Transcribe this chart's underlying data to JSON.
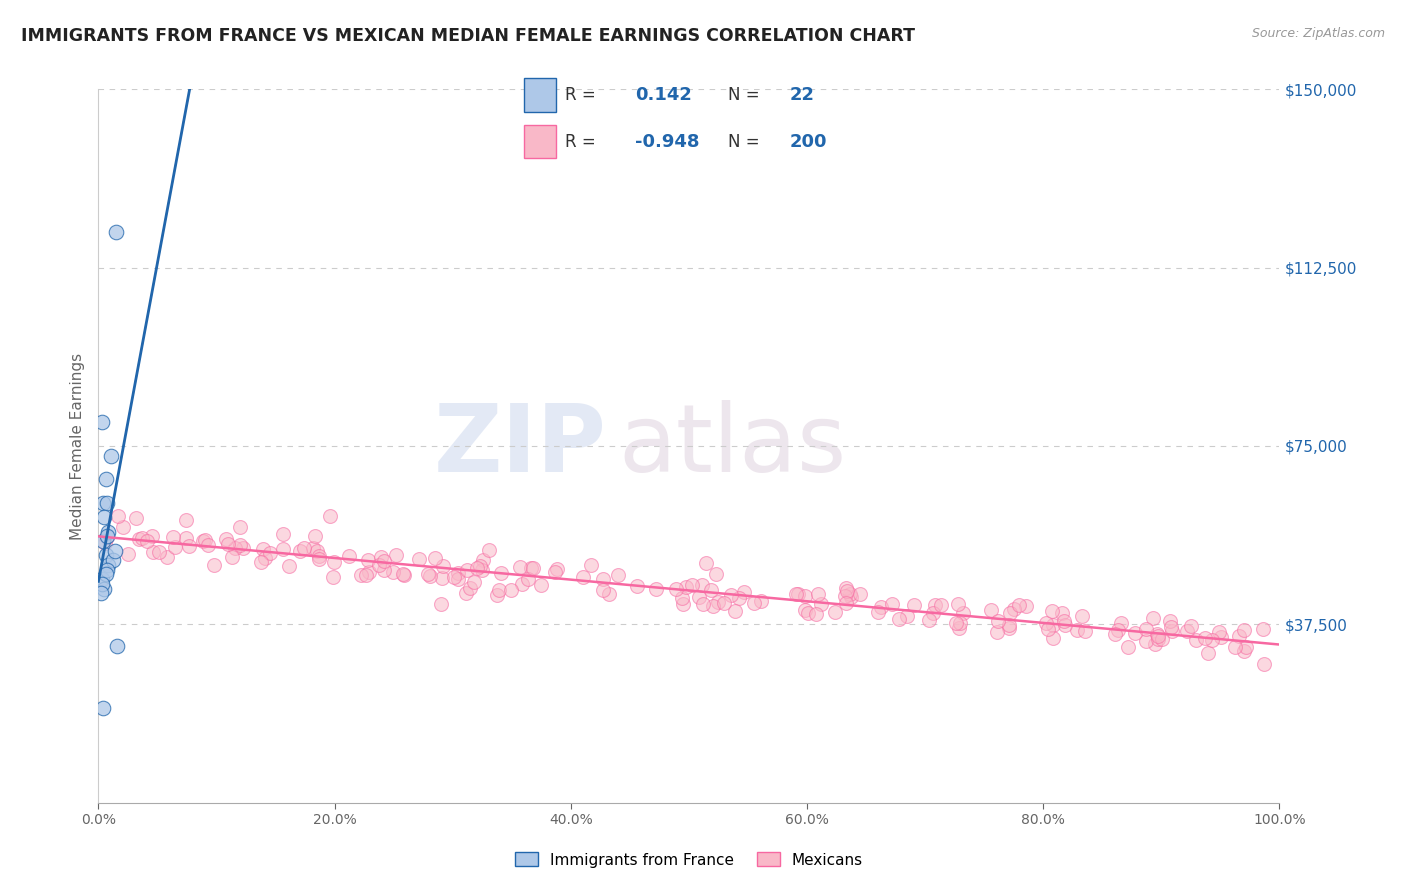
{
  "title": "IMMIGRANTS FROM FRANCE VS MEXICAN MEDIAN FEMALE EARNINGS CORRELATION CHART",
  "source": "Source: ZipAtlas.com",
  "ylabel": "Median Female Earnings",
  "legend_label1": "Immigrants from France",
  "legend_label2": "Mexicans",
  "R1": 0.142,
  "N1": 22,
  "R2": -0.948,
  "N2": 200,
  "blue_color": "#aec8e8",
  "pink_color": "#f9b8c8",
  "blue_line_color": "#2166ac",
  "pink_line_color": "#f768a1",
  "blue_dashed_color": "#aaaaaa",
  "watermark_zip": "ZIP",
  "watermark_atlas": "atlas",
  "right_yticks": [
    0,
    37500,
    75000,
    112500,
    150000
  ],
  "right_yticklabels": [
    "",
    "$37,500",
    "$75,000",
    "$112,500",
    "$150,000"
  ],
  "xmin": 0.0,
  "xmax": 1.0,
  "ymin": 0,
  "ymax": 150000,
  "grid_color": "#cccccc",
  "bg_color": "#ffffff",
  "title_color": "#222222",
  "axis_label_color": "#666666",
  "right_tick_color": "#2166ac",
  "blue_scatter_x": [
    0.004,
    0.011,
    0.003,
    0.006,
    0.007,
    0.005,
    0.004,
    0.006,
    0.008,
    0.003,
    0.015,
    0.008,
    0.007,
    0.012,
    0.014,
    0.007,
    0.005,
    0.016,
    0.004,
    0.006,
    0.003,
    0.002
  ],
  "blue_scatter_y": [
    63000,
    73000,
    80000,
    68000,
    63000,
    60000,
    55000,
    52000,
    50000,
    47000,
    120000,
    57000,
    56000,
    51000,
    53000,
    49000,
    45000,
    33000,
    20000,
    48000,
    46000,
    44000
  ],
  "pink_seed": 42,
  "pink_mean": 45000,
  "pink_std": 7000,
  "pink_rho": -0.948
}
